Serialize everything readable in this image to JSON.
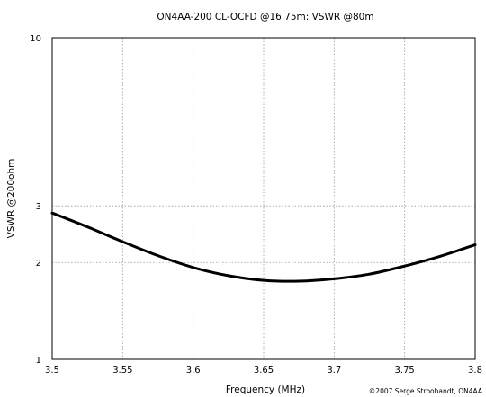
{
  "chart_data": {
    "type": "line",
    "title": "ON4AA-200 CL-OCFD @16.75m: VSWR @80m",
    "xlabel": "Frequency (MHz)",
    "ylabel": "VSWR @200ohm",
    "xlim": [
      3.5,
      3.8
    ],
    "ylim": [
      1,
      10
    ],
    "yscale": "log",
    "grid": true,
    "x_ticks": [
      "3.5",
      "3.55",
      "3.6",
      "3.65",
      "3.7",
      "3.75",
      "3.8"
    ],
    "y_ticks": [
      "1",
      "2",
      "3",
      "10"
    ],
    "series": [
      {
        "x": [
          3.5,
          3.525,
          3.55,
          3.575,
          3.6,
          3.625,
          3.65,
          3.675,
          3.7,
          3.725,
          3.75,
          3.775,
          3.8
        ],
        "y": [
          2.85,
          2.58,
          2.32,
          2.1,
          1.93,
          1.82,
          1.76,
          1.75,
          1.78,
          1.84,
          1.95,
          2.09,
          2.27
        ]
      }
    ],
    "color": "#000000"
  },
  "copyright": "©2007 Serge Stroobandt, ON4AA"
}
